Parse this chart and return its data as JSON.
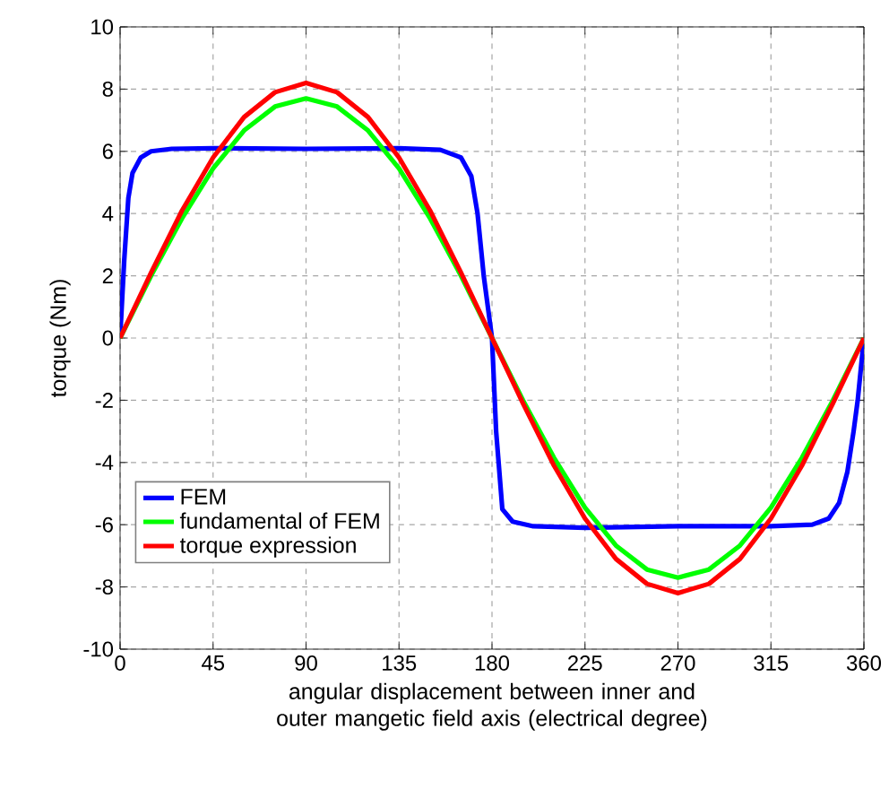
{
  "chart_data": {
    "type": "line",
    "xlabel": "angular displacement between inner and outer mangetic field axis (electrical degree)",
    "ylabel": "torque (Nm)",
    "xlim": [
      0,
      360
    ],
    "xticks": [
      0,
      45,
      90,
      135,
      180,
      225,
      270,
      315,
      360
    ],
    "ylim": [
      -10,
      10
    ],
    "yticks": [
      -10,
      -8,
      -6,
      -4,
      -2,
      0,
      2,
      4,
      6,
      8,
      10
    ],
    "grid": true,
    "legend": "bottom left",
    "line_style": "solid",
    "marker": "none",
    "series": [
      {
        "name": "FEM",
        "color": "#0000ff",
        "x": [
          0,
          2,
          4,
          6,
          10,
          15,
          25,
          45,
          90,
          135,
          155,
          165,
          170,
          173,
          176,
          180,
          182,
          185,
          190,
          200,
          225,
          270,
          315,
          335,
          343,
          348,
          352,
          355,
          357,
          360
        ],
        "values": [
          0,
          2.5,
          4.5,
          5.3,
          5.8,
          6.0,
          6.08,
          6.1,
          6.08,
          6.1,
          6.05,
          5.8,
          5.2,
          4.0,
          2.0,
          0,
          -3.0,
          -5.5,
          -5.9,
          -6.05,
          -6.1,
          -6.05,
          -6.05,
          -6.0,
          -5.8,
          -5.3,
          -4.3,
          -3.0,
          -2.0,
          0
        ]
      },
      {
        "name": "fundamental of FEM",
        "color": "#00ff00",
        "x": [
          0,
          15,
          30,
          45,
          60,
          75,
          90,
          105,
          120,
          135,
          150,
          165,
          180,
          195,
          210,
          225,
          240,
          255,
          270,
          285,
          300,
          315,
          330,
          345,
          360
        ],
        "values": [
          0,
          2.0,
          3.85,
          5.45,
          6.67,
          7.44,
          7.7,
          7.44,
          6.67,
          5.45,
          3.85,
          2.0,
          0,
          -2.0,
          -3.85,
          -5.45,
          -6.67,
          -7.44,
          -7.7,
          -7.44,
          -6.67,
          -5.45,
          -3.85,
          -2.0,
          0
        ]
      },
      {
        "name": "torque expression",
        "color": "#ff0000",
        "x": [
          0,
          15,
          30,
          45,
          60,
          75,
          90,
          105,
          120,
          135,
          150,
          165,
          180,
          195,
          210,
          225,
          240,
          255,
          270,
          285,
          300,
          315,
          330,
          345,
          360
        ],
        "values": [
          0,
          2.1,
          4.1,
          5.8,
          7.1,
          7.9,
          8.2,
          7.9,
          7.1,
          5.8,
          4.1,
          2.1,
          0,
          -2.1,
          -4.1,
          -5.8,
          -7.1,
          -7.9,
          -8.2,
          -7.9,
          -7.1,
          -5.8,
          -4.1,
          -2.1,
          0
        ]
      }
    ]
  }
}
